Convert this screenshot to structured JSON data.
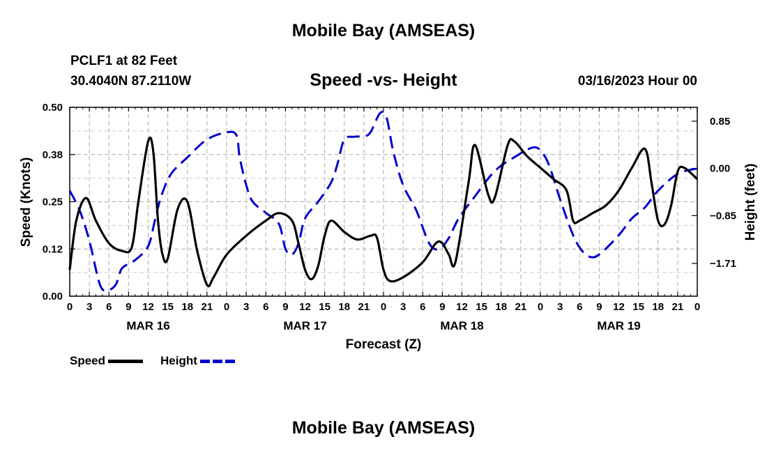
{
  "header": {
    "title": "Mobile Bay (AMSEAS)",
    "station": "PCLF1 at 82 Feet",
    "coords": "30.4040N  87.2110W",
    "subtitle": "Speed -vs- Height",
    "datetime": "03/16/2023 Hour 00",
    "footer_title": "Mobile Bay (AMSEAS)"
  },
  "chart_data": {
    "type": "line",
    "title": "Speed -vs- Height",
    "xlabel": "Forecast (Z)",
    "x_ticks": [
      "0",
      "3",
      "6",
      "9",
      "12",
      "15",
      "18",
      "21",
      "0",
      "3",
      "6",
      "9",
      "12",
      "15",
      "18",
      "21",
      "0",
      "3",
      "6",
      "9",
      "12",
      "15",
      "18",
      "21",
      "0",
      "3",
      "6",
      "9",
      "12",
      "15",
      "18",
      "21",
      "0"
    ],
    "x_day_labels": [
      "MAR 16",
      "MAR 17",
      "MAR 18",
      "MAR 19"
    ],
    "x_range_hours": [
      0,
      96
    ],
    "grid": true,
    "legend_position": "bottom-left",
    "y_left": {
      "label": "Speed (Knots)",
      "range": [
        0,
        0.5
      ],
      "ticks": [
        "0.00",
        "0.12",
        "0.25",
        "0.38",
        "0.50"
      ]
    },
    "y_right": {
      "label": "Height (feet)",
      "range": [
        -2.3,
        1.1
      ],
      "ticks": [
        "0.85",
        "0.00",
        "−0.85",
        "−1.71"
      ],
      "tick_values": [
        0.85,
        0,
        -0.85,
        -1.71
      ]
    },
    "series": [
      {
        "name": "Speed",
        "axis": "left",
        "color": "#000000",
        "style": "solid",
        "points": [
          [
            0,
            0.07
          ],
          [
            1,
            0.2
          ],
          [
            2.5,
            0.26
          ],
          [
            4,
            0.2
          ],
          [
            6,
            0.14
          ],
          [
            8,
            0.12
          ],
          [
            9.5,
            0.13
          ],
          [
            10.5,
            0.25
          ],
          [
            12,
            0.41
          ],
          [
            12.8,
            0.38
          ],
          [
            13.5,
            0.2
          ],
          [
            14.2,
            0.11
          ],
          [
            15,
            0.1
          ],
          [
            16.5,
            0.23
          ],
          [
            18,
            0.25
          ],
          [
            19.5,
            0.12
          ],
          [
            21,
            0.03
          ],
          [
            22,
            0.05
          ],
          [
            24,
            0.11
          ],
          [
            27,
            0.16
          ],
          [
            30,
            0.2
          ],
          [
            32,
            0.22
          ],
          [
            34,
            0.2
          ],
          [
            35,
            0.14
          ],
          [
            36,
            0.07
          ],
          [
            37,
            0.045
          ],
          [
            38,
            0.08
          ],
          [
            39,
            0.16
          ],
          [
            40,
            0.2
          ],
          [
            42,
            0.17
          ],
          [
            44,
            0.15
          ],
          [
            46,
            0.16
          ],
          [
            47,
            0.155
          ],
          [
            48,
            0.07
          ],
          [
            49,
            0.04
          ],
          [
            51,
            0.05
          ],
          [
            54,
            0.09
          ],
          [
            56,
            0.14
          ],
          [
            57,
            0.14
          ],
          [
            58,
            0.11
          ],
          [
            59,
            0.09
          ],
          [
            61,
            0.3
          ],
          [
            62,
            0.4
          ],
          [
            64,
            0.27
          ],
          [
            65,
            0.26
          ],
          [
            67,
            0.4
          ],
          [
            68,
            0.41
          ],
          [
            70,
            0.37
          ],
          [
            72,
            0.34
          ],
          [
            74,
            0.31
          ],
          [
            76,
            0.28
          ],
          [
            77,
            0.2
          ],
          [
            78,
            0.2
          ],
          [
            80,
            0.22
          ],
          [
            82,
            0.24
          ],
          [
            84,
            0.28
          ],
          [
            86,
            0.34
          ],
          [
            88,
            0.39
          ],
          [
            89,
            0.3
          ],
          [
            90,
            0.2
          ],
          [
            91,
            0.19
          ],
          [
            92,
            0.24
          ],
          [
            93,
            0.33
          ],
          [
            94,
            0.34
          ],
          [
            96,
            0.31
          ]
        ]
      },
      {
        "name": "Height",
        "axis": "right",
        "color": "#0000cc",
        "style": "dashed",
        "points": [
          [
            0,
            -0.4
          ],
          [
            1.5,
            -0.75
          ],
          [
            3,
            -1.3
          ],
          [
            4.5,
            -2.05
          ],
          [
            5.5,
            -2.2
          ],
          [
            7,
            -2.1
          ],
          [
            8,
            -1.8
          ],
          [
            10,
            -1.65
          ],
          [
            12,
            -1.4
          ],
          [
            13,
            -0.95
          ],
          [
            14,
            -0.5
          ],
          [
            15.5,
            -0.1
          ],
          [
            18,
            0.2
          ],
          [
            21,
            0.52
          ],
          [
            24,
            0.65
          ],
          [
            25.5,
            0.6
          ],
          [
            26,
            0.2
          ],
          [
            27,
            -0.3
          ],
          [
            28,
            -0.6
          ],
          [
            30,
            -0.8
          ],
          [
            32,
            -1.0
          ],
          [
            33,
            -1.45
          ],
          [
            34,
            -1.55
          ],
          [
            35,
            -1.35
          ],
          [
            36,
            -0.9
          ],
          [
            38,
            -0.6
          ],
          [
            40,
            -0.25
          ],
          [
            41,
            0.1
          ],
          [
            42,
            0.52
          ],
          [
            43.5,
            0.57
          ],
          [
            45,
            0.58
          ],
          [
            46,
            0.65
          ],
          [
            47.5,
            1.0
          ],
          [
            48.5,
            0.9
          ],
          [
            49.5,
            0.3
          ],
          [
            51,
            -0.3
          ],
          [
            53,
            -0.75
          ],
          [
            55,
            -1.35
          ],
          [
            56.5,
            -1.45
          ],
          [
            58,
            -1.25
          ],
          [
            59.5,
            -0.9
          ],
          [
            62,
            -0.5
          ],
          [
            65,
            -0.05
          ],
          [
            68,
            0.2
          ],
          [
            71,
            0.38
          ],
          [
            72.5,
            0.25
          ],
          [
            73.5,
            0.0
          ],
          [
            75,
            -0.55
          ],
          [
            77,
            -1.2
          ],
          [
            78.5,
            -1.5
          ],
          [
            80,
            -1.6
          ],
          [
            81.5,
            -1.5
          ],
          [
            84,
            -1.2
          ],
          [
            86,
            -0.9
          ],
          [
            88,
            -0.7
          ],
          [
            90,
            -0.4
          ],
          [
            93,
            -0.1
          ],
          [
            96,
            0.0
          ]
        ]
      }
    ]
  },
  "legend": {
    "speed_label": "Speed",
    "height_label": "Height",
    "speed_color": "#000000",
    "height_color": "#0000cc"
  }
}
